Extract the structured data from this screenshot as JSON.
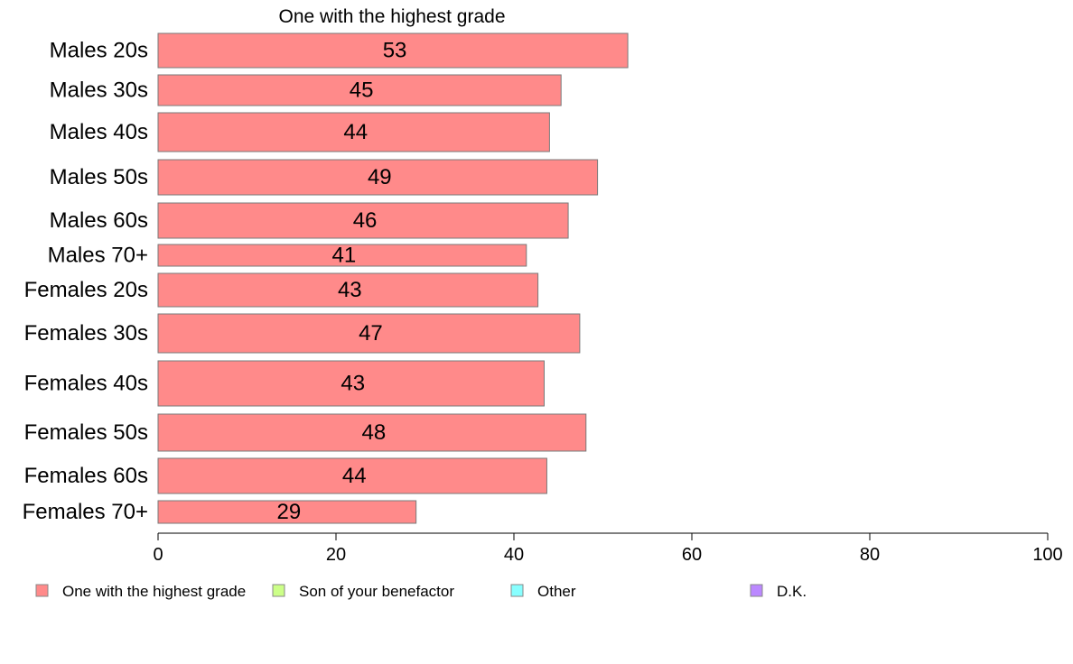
{
  "chart_data": {
    "type": "bar",
    "orientation": "horizontal",
    "title": "One with the highest grade",
    "categories": [
      "Males 20s",
      "Males 30s",
      "Males 40s",
      "Males 50s",
      "Males 60s",
      "Males 70+",
      "Females 20s",
      "Females 30s",
      "Females 40s",
      "Females 50s",
      "Females 60s",
      "Females 70+"
    ],
    "series": [
      {
        "name": "One with the highest grade",
        "color": "#ff8a8a",
        "values": [
          52.8,
          45.3,
          44.0,
          49.4,
          46.1,
          41.4,
          42.7,
          47.4,
          43.4,
          48.1,
          43.7,
          29.0
        ],
        "labels": [
          "53",
          "45",
          "44",
          "49",
          "46",
          "41",
          "43",
          "47",
          "43",
          "48",
          "44",
          "29"
        ]
      }
    ],
    "xlim": [
      0,
      100
    ],
    "xticks": [
      "0",
      "20",
      "40",
      "60",
      "80",
      "100"
    ],
    "xlabel": "",
    "ylabel": "",
    "grid": false,
    "legend": {
      "placement": "bottom",
      "entries": [
        {
          "label": "One with the highest grade",
          "color": "#ff8a8a"
        },
        {
          "label": "Son of your benefactor",
          "color": "#ccff88"
        },
        {
          "label": "Other",
          "color": "#88ffff"
        },
        {
          "label": "D.K.",
          "color": "#bb88ff"
        }
      ]
    }
  }
}
